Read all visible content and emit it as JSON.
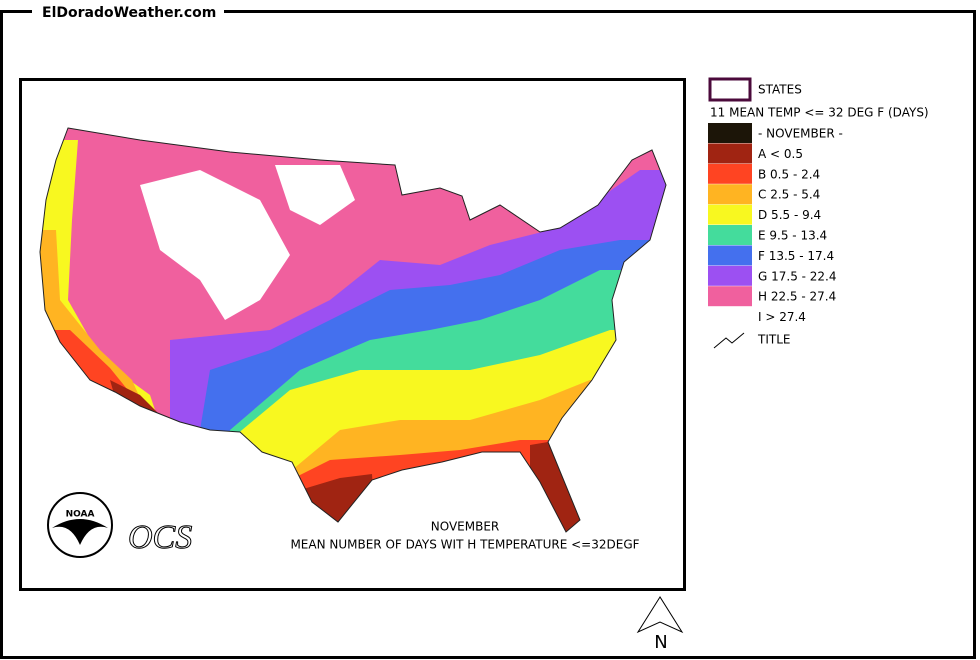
{
  "header": {
    "site": "ElDoradoWeather.com"
  },
  "legend": {
    "states": "STATES",
    "title": "11 MEAN TEMP <= 32 DEG F (DAYS)",
    "items": [
      {
        "label": "- NOVEMBER -",
        "color": "#1c1508"
      },
      {
        "label": "A < 0.5",
        "color": "#a02412"
      },
      {
        "label": "B 0.5 - 2.4",
        "color": "#ff4422"
      },
      {
        "label": "C 2.5 - 5.4",
        "color": "#ffb422"
      },
      {
        "label": "D 5.5 - 9.4",
        "color": "#f8f820"
      },
      {
        "label": "E 9.5 - 13.4",
        "color": "#44dc9c"
      },
      {
        "label": "F 13.5 - 17.4",
        "color": "#4470ee"
      },
      {
        "label": "G 17.5 - 22.4",
        "color": "#9c50f2"
      },
      {
        "label": "H 22.5 - 27.4",
        "color": "#f0609e"
      },
      {
        "label": "I > 27.4",
        "color": "#ffffff"
      }
    ],
    "title_item": "TITLE"
  },
  "map": {
    "logo": "NOAA",
    "agency": "OCS",
    "month": "NOVEMBER",
    "caption": "MEAN NUMBER OF DAYS WIT H TEMPERATURE <=32DEGF",
    "north": "N"
  }
}
